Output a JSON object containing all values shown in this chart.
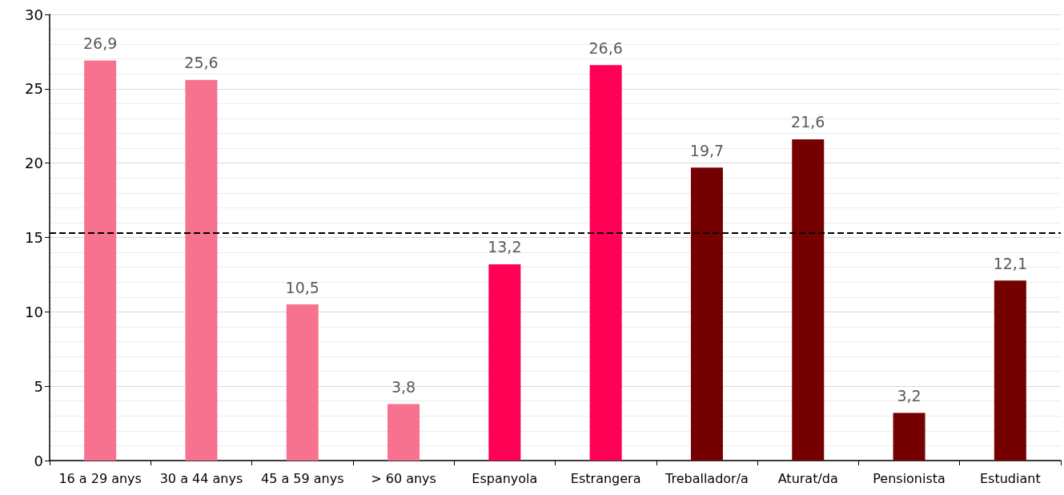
{
  "chart_data": {
    "type": "bar",
    "categories": [
      "16 a 29 anys",
      "30 a 44 anys",
      "45 a 59 anys",
      "> 60 anys",
      "Espanyola",
      "Estrangera",
      "Treballador/a",
      "Aturat/da",
      "Pensionista",
      "Estudiant"
    ],
    "values": [
      26.9,
      25.6,
      10.5,
      3.8,
      13.2,
      26.6,
      19.7,
      21.6,
      3.2,
      12.1
    ],
    "colors": [
      "#f7728f",
      "#f7728f",
      "#f7728f",
      "#f7728f",
      "#ff0055",
      "#ff0055",
      "#750000",
      "#750000",
      "#750000",
      "#750000"
    ],
    "value_labels": [
      "26,9",
      "25,6",
      "10,5",
      "3,8",
      "13,2",
      "26,6",
      "19,7",
      "21,6",
      "3,2",
      "12,1"
    ],
    "ylim": [
      0,
      30
    ],
    "yticks": [
      0,
      5,
      10,
      15,
      20,
      25,
      30
    ],
    "grid": "y",
    "ref_lines": [
      {
        "axis": "y",
        "value": 15.3,
        "color": "#000000",
        "line_style": "dashed"
      }
    ]
  }
}
